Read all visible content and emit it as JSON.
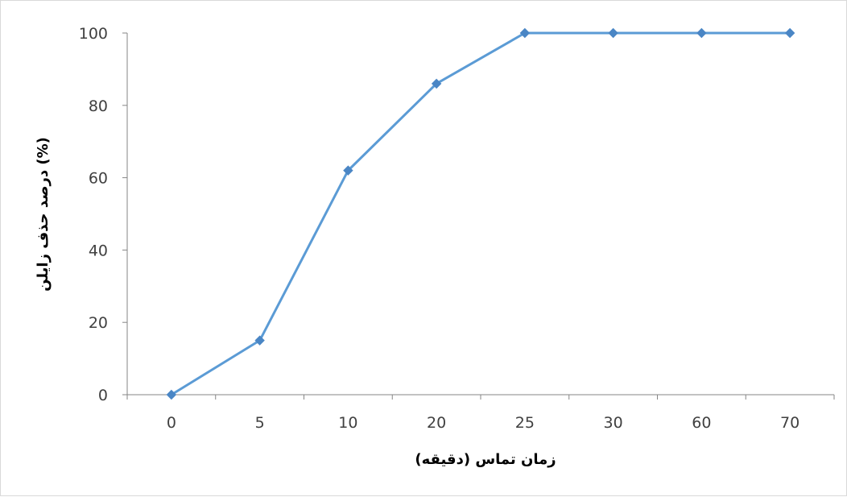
{
  "chart_data": {
    "type": "line",
    "categories": [
      "0",
      "5",
      "10",
      "20",
      "25",
      "30",
      "60",
      "70"
    ],
    "series": [
      {
        "values": [
          0,
          15,
          62,
          86,
          100,
          100,
          100,
          100
        ]
      }
    ],
    "xlabel": "زمان تماس (دقیقه)",
    "ylabel": "درصد حذف زایلن (%)",
    "ylim": [
      0,
      100
    ],
    "yticks": [
      0,
      20,
      40,
      60,
      80,
      100
    ],
    "grid": false,
    "legend": "none",
    "colors": {
      "line": "#5b9bd5",
      "marker": "#4a86c5",
      "axis": "#868686"
    }
  }
}
